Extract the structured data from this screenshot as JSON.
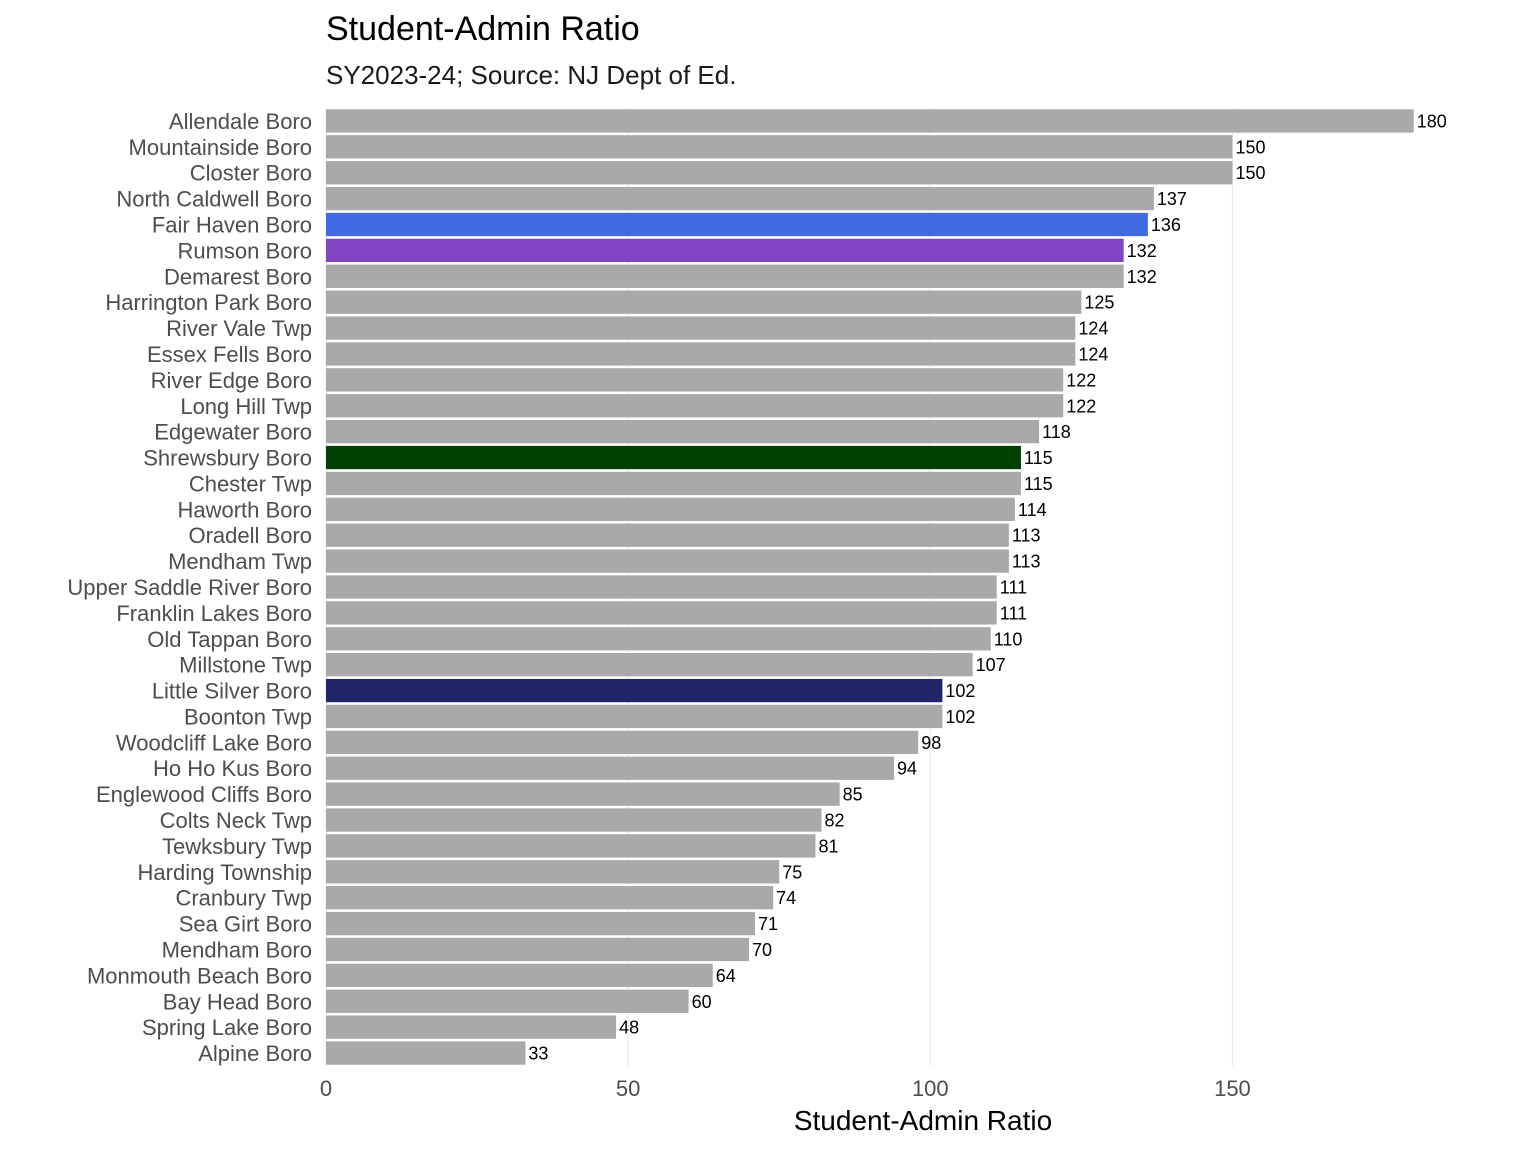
{
  "chart_data": {
    "type": "bar",
    "orientation": "horizontal",
    "title": "Student-Admin Ratio",
    "subtitle": "SY2023-24; Source: NJ Dept of Ed.",
    "xlabel": "Student-Admin Ratio",
    "ylabel": "",
    "xlim": [
      0,
      186
    ],
    "x_ticks": [
      0,
      50,
      100,
      150
    ],
    "grid": true,
    "legend": "none",
    "default_color": "#a9a9a9",
    "categories": [
      "Allendale Boro",
      "Mountainside Boro",
      "Closter Boro",
      "North Caldwell Boro",
      "Fair Haven Boro",
      "Rumson Boro",
      "Demarest Boro",
      "Harrington Park Boro",
      "River Vale Twp",
      "Essex Fells Boro",
      "River Edge Boro",
      "Long Hill Twp",
      "Edgewater Boro",
      "Shrewsbury Boro",
      "Chester Twp",
      "Haworth Boro",
      "Oradell Boro",
      "Mendham Twp",
      "Upper Saddle River Boro",
      "Franklin Lakes Boro",
      "Old Tappan Boro",
      "Millstone Twp",
      "Little Silver Boro",
      "Boonton Twp",
      "Woodcliff Lake Boro",
      "Ho Ho Kus Boro",
      "Englewood Cliffs Boro",
      "Colts Neck Twp",
      "Tewksbury Twp",
      "Harding Township",
      "Cranbury Twp",
      "Sea Girt Boro",
      "Mendham Boro",
      "Monmouth Beach Boro",
      "Bay Head Boro",
      "Spring Lake Boro",
      "Alpine Boro"
    ],
    "values": [
      180,
      150,
      150,
      137,
      136,
      132,
      132,
      125,
      124,
      124,
      122,
      122,
      118,
      115,
      115,
      114,
      113,
      113,
      111,
      111,
      110,
      107,
      102,
      102,
      98,
      94,
      85,
      82,
      81,
      75,
      74,
      71,
      70,
      64,
      60,
      48,
      33
    ],
    "highlight_colors": {
      "Fair Haven Boro": "#4169e1",
      "Rumson Boro": "#8344c4",
      "Shrewsbury Boro": "#004000",
      "Little Silver Boro": "#1f2566"
    }
  }
}
